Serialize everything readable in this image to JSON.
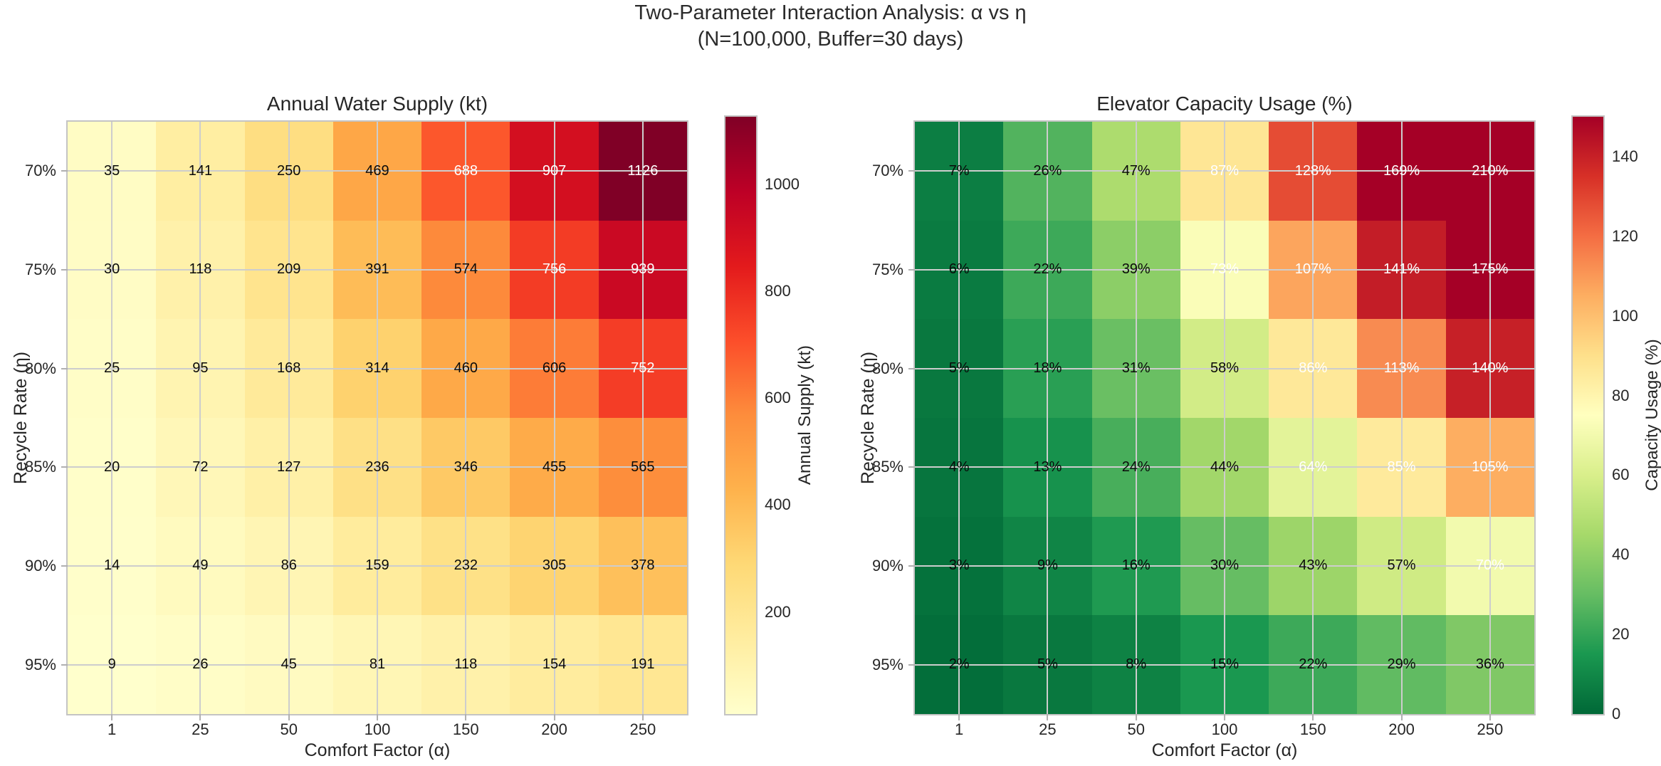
{
  "figure": {
    "title_line1": "Two-Parameter Interaction Analysis: α vs η",
    "title_line2": "(N=100,000, Buffer=30 days)",
    "background_color": "#ffffff",
    "text_color": "#262626",
    "grid_color": "#cdcdcd",
    "spine_color": "#c4c4c4",
    "annotation_black": "#0a0a0a",
    "annotation_white": "#ffffff"
  },
  "chart_data": [
    {
      "type": "heatmap",
      "title": "Annual Water Supply (kt)",
      "xlabel": "Comfort Factor (α)",
      "ylabel": "Recycle Rate (η)",
      "x_tick_labels": [
        "1",
        "25",
        "50",
        "100",
        "150",
        "200",
        "250"
      ],
      "y_tick_labels": [
        "70%",
        "75%",
        "80%",
        "85%",
        "90%",
        "95%"
      ],
      "values": [
        [
          35,
          141,
          250,
          469,
          688,
          907,
          1126
        ],
        [
          30,
          118,
          209,
          391,
          574,
          756,
          939
        ],
        [
          25,
          95,
          168,
          314,
          460,
          606,
          752
        ],
        [
          20,
          72,
          127,
          236,
          346,
          455,
          565
        ],
        [
          14,
          49,
          86,
          159,
          232,
          305,
          378
        ],
        [
          9,
          26,
          45,
          81,
          118,
          154,
          191
        ]
      ],
      "annotation_format": "int",
      "colormap": "YlOrRd",
      "reverse_colormap": false,
      "vmin": 9,
      "vmax": 1126,
      "white_text_min": 620,
      "grid_on": true,
      "colorbar": {
        "label": "Annual Supply (kt)",
        "ticks": [
          200,
          400,
          600,
          800,
          1000
        ],
        "position": "right"
      }
    },
    {
      "type": "heatmap",
      "title": "Elevator Capacity Usage (%)",
      "xlabel": "Comfort Factor (α)",
      "ylabel": "Recycle Rate (η)",
      "x_tick_labels": [
        "1",
        "25",
        "50",
        "100",
        "150",
        "200",
        "250"
      ],
      "y_tick_labels": [
        "70%",
        "75%",
        "80%",
        "85%",
        "90%",
        "95%"
      ],
      "values": [
        [
          7,
          26,
          47,
          87,
          128,
          169,
          210
        ],
        [
          6,
          22,
          39,
          73,
          107,
          141,
          175
        ],
        [
          5,
          18,
          31,
          58,
          86,
          113,
          140
        ],
        [
          4,
          13,
          24,
          44,
          64,
          85,
          105
        ],
        [
          3,
          9,
          16,
          30,
          43,
          57,
          70
        ],
        [
          2,
          5,
          8,
          15,
          22,
          29,
          36
        ]
      ],
      "annotation_format": "percent",
      "colormap": "RdYlGn",
      "reverse_colormap": true,
      "vmin": 0,
      "vmax": 150,
      "white_text_min": 60,
      "grid_on": true,
      "colorbar": {
        "label": "Capacity Usage (%)",
        "ticks": [
          0,
          20,
          40,
          60,
          80,
          100,
          120,
          140
        ],
        "position": "right"
      }
    }
  ],
  "colormaps": {
    "YlOrRd": [
      "#ffffcc",
      "#ffeda0",
      "#fed976",
      "#feb24c",
      "#fd8d3c",
      "#fc4e2a",
      "#e31a1c",
      "#bd0026",
      "#800026"
    ],
    "RdYlGn": [
      "#a50026",
      "#d73027",
      "#f46d43",
      "#fdae61",
      "#fee08b",
      "#ffffbf",
      "#d9ef8b",
      "#a6d96a",
      "#66bd63",
      "#1a9850",
      "#006837"
    ]
  }
}
